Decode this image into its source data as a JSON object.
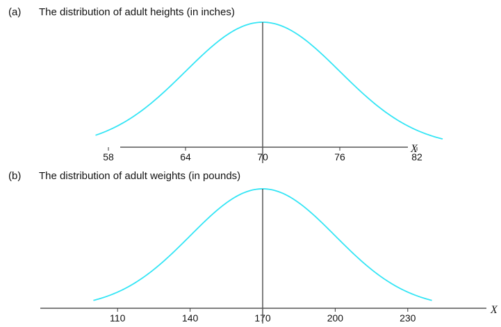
{
  "chart_data": [
    {
      "id": "a",
      "type": "line",
      "panel_label": "(a)",
      "title": "The distribution of adult heights (in inches)",
      "xlabel": "X",
      "ylabel": "",
      "mean": 70,
      "sd": 6,
      "xlim": [
        57,
        84
      ],
      "ticks": [
        58,
        64,
        70,
        76,
        82
      ],
      "tick_labels": [
        "58",
        "64",
        "70",
        "76",
        "82"
      ],
      "curve_color": "#33E5F5",
      "mean_line_color": "#555555",
      "axis_color": "#333333",
      "grid": false
    },
    {
      "id": "b",
      "type": "line",
      "panel_label": "(b)",
      "title": "The distribution of adult weights (in pounds)",
      "xlabel": "X",
      "ylabel": "",
      "mean": 170,
      "sd": 30,
      "xlim": [
        100,
        240
      ],
      "ticks": [
        110,
        140,
        170,
        200,
        230
      ],
      "tick_labels": [
        "110",
        "140",
        "170",
        "200",
        "230"
      ],
      "curve_color": "#33E5F5",
      "mean_line_color": "#555555",
      "axis_color": "#333333",
      "grid": false
    }
  ]
}
